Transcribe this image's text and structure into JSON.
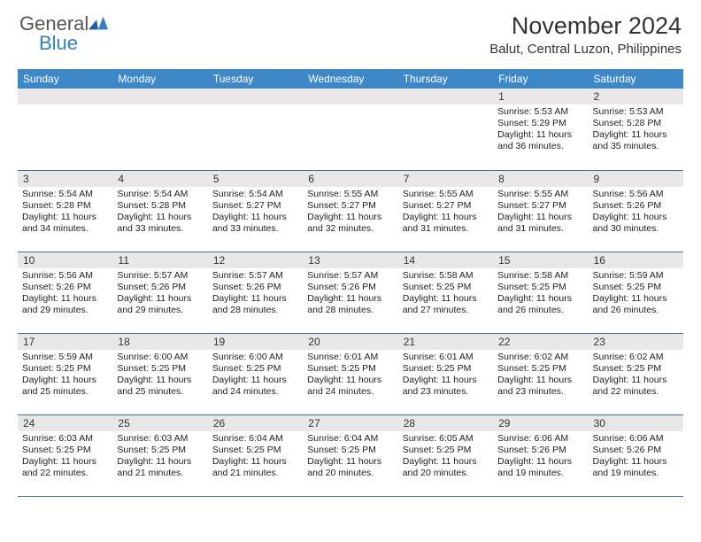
{
  "brand": {
    "name_gray": "General",
    "name_blue": "Blue"
  },
  "title": "November 2024",
  "location": "Balut, Central Luzon, Philippines",
  "colors": {
    "header_bg": "#3e88c7",
    "header_text": "#ffffff",
    "daynum_bg": "#e8e8e8",
    "border": "#3e6fa3",
    "brand_gray": "#555555",
    "brand_blue": "#2f7fc3",
    "body_text": "#222222"
  },
  "day_names": [
    "Sunday",
    "Monday",
    "Tuesday",
    "Wednesday",
    "Thursday",
    "Friday",
    "Saturday"
  ],
  "weeks": [
    [
      {
        "n": "",
        "sr": "",
        "ss": "",
        "dl": ""
      },
      {
        "n": "",
        "sr": "",
        "ss": "",
        "dl": ""
      },
      {
        "n": "",
        "sr": "",
        "ss": "",
        "dl": ""
      },
      {
        "n": "",
        "sr": "",
        "ss": "",
        "dl": ""
      },
      {
        "n": "",
        "sr": "",
        "ss": "",
        "dl": ""
      },
      {
        "n": "1",
        "sr": "Sunrise: 5:53 AM",
        "ss": "Sunset: 5:29 PM",
        "dl": "Daylight: 11 hours and 36 minutes."
      },
      {
        "n": "2",
        "sr": "Sunrise: 5:53 AM",
        "ss": "Sunset: 5:28 PM",
        "dl": "Daylight: 11 hours and 35 minutes."
      }
    ],
    [
      {
        "n": "3",
        "sr": "Sunrise: 5:54 AM",
        "ss": "Sunset: 5:28 PM",
        "dl": "Daylight: 11 hours and 34 minutes."
      },
      {
        "n": "4",
        "sr": "Sunrise: 5:54 AM",
        "ss": "Sunset: 5:28 PM",
        "dl": "Daylight: 11 hours and 33 minutes."
      },
      {
        "n": "5",
        "sr": "Sunrise: 5:54 AM",
        "ss": "Sunset: 5:27 PM",
        "dl": "Daylight: 11 hours and 33 minutes."
      },
      {
        "n": "6",
        "sr": "Sunrise: 5:55 AM",
        "ss": "Sunset: 5:27 PM",
        "dl": "Daylight: 11 hours and 32 minutes."
      },
      {
        "n": "7",
        "sr": "Sunrise: 5:55 AM",
        "ss": "Sunset: 5:27 PM",
        "dl": "Daylight: 11 hours and 31 minutes."
      },
      {
        "n": "8",
        "sr": "Sunrise: 5:55 AM",
        "ss": "Sunset: 5:27 PM",
        "dl": "Daylight: 11 hours and 31 minutes."
      },
      {
        "n": "9",
        "sr": "Sunrise: 5:56 AM",
        "ss": "Sunset: 5:26 PM",
        "dl": "Daylight: 11 hours and 30 minutes."
      }
    ],
    [
      {
        "n": "10",
        "sr": "Sunrise: 5:56 AM",
        "ss": "Sunset: 5:26 PM",
        "dl": "Daylight: 11 hours and 29 minutes."
      },
      {
        "n": "11",
        "sr": "Sunrise: 5:57 AM",
        "ss": "Sunset: 5:26 PM",
        "dl": "Daylight: 11 hours and 29 minutes."
      },
      {
        "n": "12",
        "sr": "Sunrise: 5:57 AM",
        "ss": "Sunset: 5:26 PM",
        "dl": "Daylight: 11 hours and 28 minutes."
      },
      {
        "n": "13",
        "sr": "Sunrise: 5:57 AM",
        "ss": "Sunset: 5:26 PM",
        "dl": "Daylight: 11 hours and 28 minutes."
      },
      {
        "n": "14",
        "sr": "Sunrise: 5:58 AM",
        "ss": "Sunset: 5:25 PM",
        "dl": "Daylight: 11 hours and 27 minutes."
      },
      {
        "n": "15",
        "sr": "Sunrise: 5:58 AM",
        "ss": "Sunset: 5:25 PM",
        "dl": "Daylight: 11 hours and 26 minutes."
      },
      {
        "n": "16",
        "sr": "Sunrise: 5:59 AM",
        "ss": "Sunset: 5:25 PM",
        "dl": "Daylight: 11 hours and 26 minutes."
      }
    ],
    [
      {
        "n": "17",
        "sr": "Sunrise: 5:59 AM",
        "ss": "Sunset: 5:25 PM",
        "dl": "Daylight: 11 hours and 25 minutes."
      },
      {
        "n": "18",
        "sr": "Sunrise: 6:00 AM",
        "ss": "Sunset: 5:25 PM",
        "dl": "Daylight: 11 hours and 25 minutes."
      },
      {
        "n": "19",
        "sr": "Sunrise: 6:00 AM",
        "ss": "Sunset: 5:25 PM",
        "dl": "Daylight: 11 hours and 24 minutes."
      },
      {
        "n": "20",
        "sr": "Sunrise: 6:01 AM",
        "ss": "Sunset: 5:25 PM",
        "dl": "Daylight: 11 hours and 24 minutes."
      },
      {
        "n": "21",
        "sr": "Sunrise: 6:01 AM",
        "ss": "Sunset: 5:25 PM",
        "dl": "Daylight: 11 hours and 23 minutes."
      },
      {
        "n": "22",
        "sr": "Sunrise: 6:02 AM",
        "ss": "Sunset: 5:25 PM",
        "dl": "Daylight: 11 hours and 23 minutes."
      },
      {
        "n": "23",
        "sr": "Sunrise: 6:02 AM",
        "ss": "Sunset: 5:25 PM",
        "dl": "Daylight: 11 hours and 22 minutes."
      }
    ],
    [
      {
        "n": "24",
        "sr": "Sunrise: 6:03 AM",
        "ss": "Sunset: 5:25 PM",
        "dl": "Daylight: 11 hours and 22 minutes."
      },
      {
        "n": "25",
        "sr": "Sunrise: 6:03 AM",
        "ss": "Sunset: 5:25 PM",
        "dl": "Daylight: 11 hours and 21 minutes."
      },
      {
        "n": "26",
        "sr": "Sunrise: 6:04 AM",
        "ss": "Sunset: 5:25 PM",
        "dl": "Daylight: 11 hours and 21 minutes."
      },
      {
        "n": "27",
        "sr": "Sunrise: 6:04 AM",
        "ss": "Sunset: 5:25 PM",
        "dl": "Daylight: 11 hours and 20 minutes."
      },
      {
        "n": "28",
        "sr": "Sunrise: 6:05 AM",
        "ss": "Sunset: 5:25 PM",
        "dl": "Daylight: 11 hours and 20 minutes."
      },
      {
        "n": "29",
        "sr": "Sunrise: 6:06 AM",
        "ss": "Sunset: 5:26 PM",
        "dl": "Daylight: 11 hours and 19 minutes."
      },
      {
        "n": "30",
        "sr": "Sunrise: 6:06 AM",
        "ss": "Sunset: 5:26 PM",
        "dl": "Daylight: 11 hours and 19 minutes."
      }
    ]
  ]
}
